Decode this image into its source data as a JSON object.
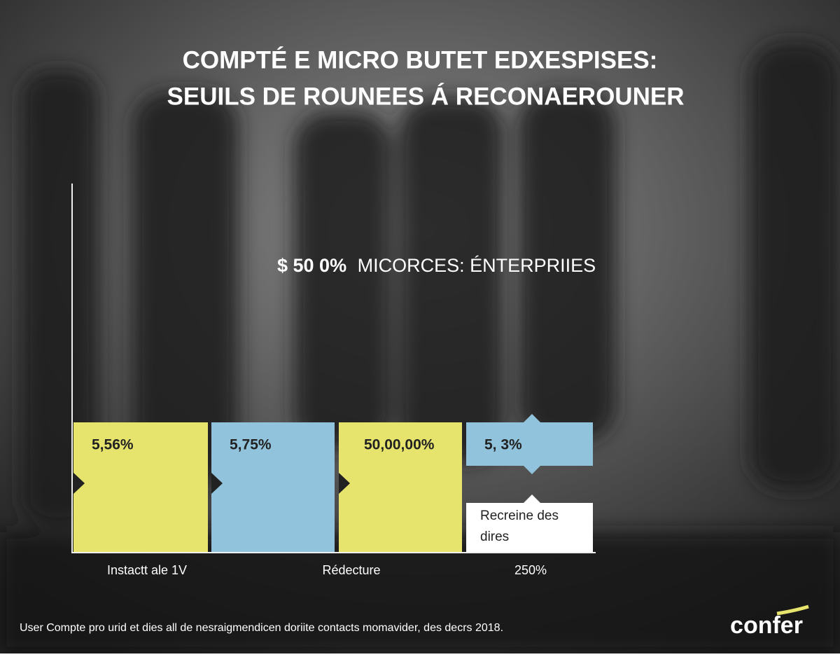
{
  "header": {
    "title_line1": "COMPTÉ E MICRO BUTET EDXESPISES:",
    "title_line2": "SEUILS DE ROUNEES Á RECONAEROUNER"
  },
  "subtitle": {
    "strong": "$ 50 0%",
    "rest": "MICORCES: ÉNTERPRIIES"
  },
  "boxes": [
    {
      "label": "5,56%",
      "color": "#e6e46c"
    },
    {
      "label": "5,75%",
      "color": "#91c4dc"
    },
    {
      "label": "50,00,00%",
      "color": "#e6e46c"
    },
    {
      "label": "5, 3%",
      "color": "#91c4dc"
    }
  ],
  "note": "Recreine des dires",
  "axis_labels": [
    "Instactt ale 1V",
    "Rédecture",
    "250%"
  ],
  "footnote": "User Compte pro urid et dies all de nesraigmendicen doriite contacts momavider, des decrs 2018.",
  "logo": "confer"
}
